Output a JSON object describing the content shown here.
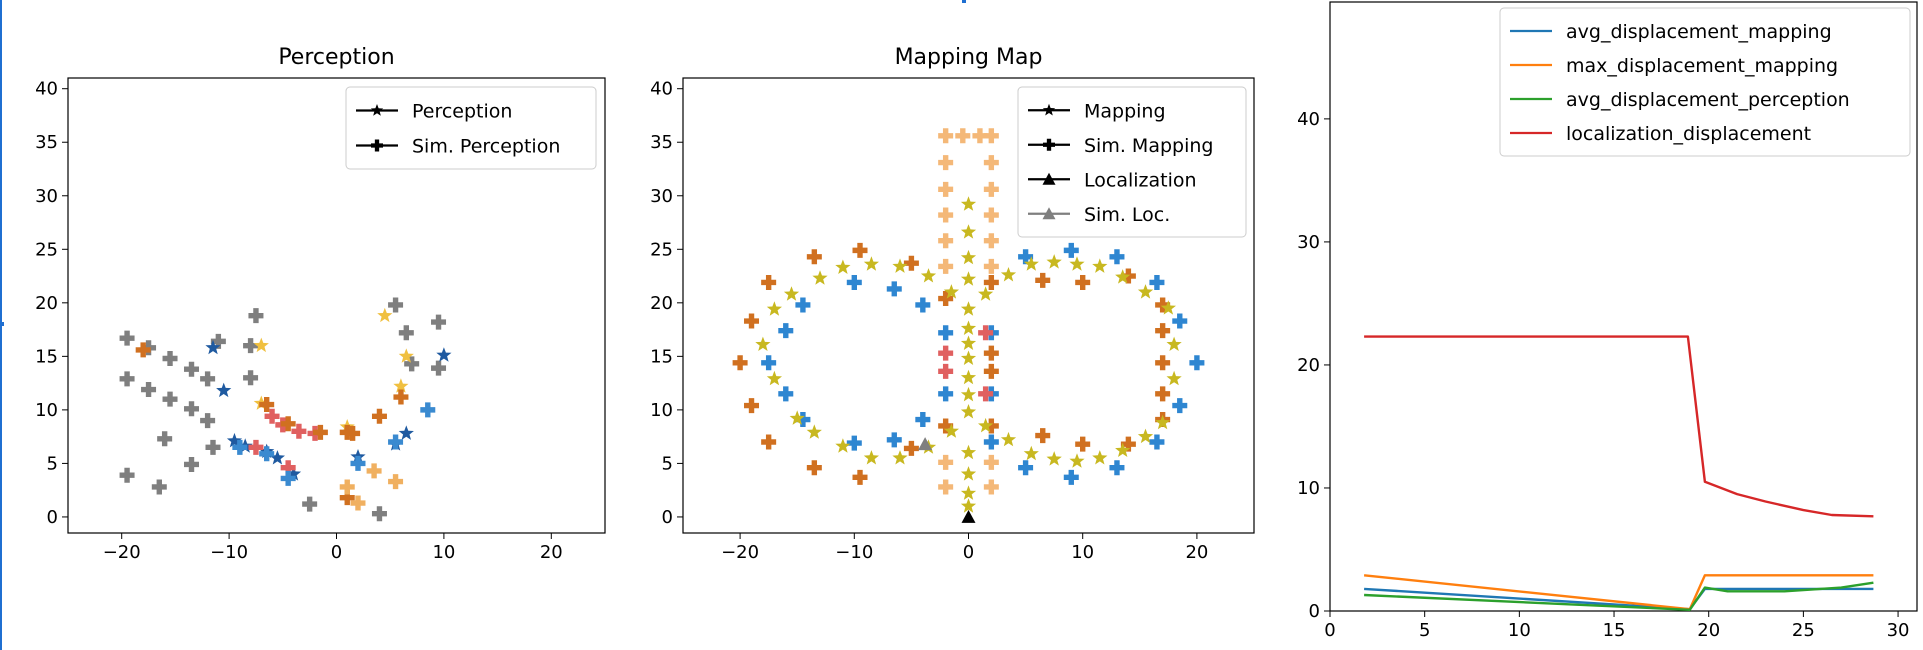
{
  "chart_data": [
    {
      "type": "scatter",
      "title": "Perception",
      "xlim": [
        -25,
        25
      ],
      "ylim": [
        -1.5,
        41
      ],
      "xticks": [
        -20,
        -10,
        0,
        10,
        20
      ],
      "yticks": [
        0,
        5,
        10,
        15,
        20,
        25,
        30,
        35,
        40
      ],
      "legend": {
        "placement": "top-right",
        "entries": [
          {
            "label": "Perception",
            "marker": "star",
            "color": "#000000"
          },
          {
            "label": "Sim. Perception",
            "marker": "plus",
            "color": "#000000"
          }
        ]
      },
      "series": [
        {
          "marker": "plus",
          "color": "#7f7f7f",
          "points": [
            [
              -19.5,
              16.7
            ],
            [
              -17.5,
              15.8
            ],
            [
              -15.5,
              14.8
            ],
            [
              -11,
              16.4
            ],
            [
              -8,
              16
            ],
            [
              -7.5,
              18.8
            ],
            [
              -19.5,
              12.9
            ],
            [
              -17.5,
              11.9
            ],
            [
              -15.5,
              11
            ],
            [
              -13.5,
              13.8
            ],
            [
              -12,
              12.9
            ],
            [
              -13.5,
              10.1
            ],
            [
              -12,
              9
            ],
            [
              -16,
              7.3
            ],
            [
              -13.5,
              4.9
            ],
            [
              -19.5,
              3.9
            ],
            [
              -16.5,
              2.8
            ],
            [
              -11.5,
              6.5
            ],
            [
              -8,
              13
            ],
            [
              -2.5,
              1.2
            ],
            [
              4,
              0.3
            ],
            [
              5.5,
              19.8
            ],
            [
              6.5,
              17.2
            ],
            [
              9.5,
              18.2
            ],
            [
              9.5,
              13.9
            ],
            [
              7,
              14.3
            ]
          ]
        },
        {
          "marker": "star",
          "color": "#1f5aa0",
          "points": [
            [
              -11.5,
              15.8
            ],
            [
              -10.5,
              11.8
            ],
            [
              -9.5,
              7.1
            ],
            [
              -8.5,
              6.6
            ],
            [
              -6.5,
              6.1
            ],
            [
              -5.5,
              5.5
            ],
            [
              -4,
              4
            ],
            [
              2,
              5.6
            ],
            [
              5.5,
              6.8
            ],
            [
              6.5,
              7.8
            ],
            [
              10,
              15.1
            ]
          ]
        },
        {
          "marker": "plus",
          "color": "#e06060",
          "points": [
            [
              -7.5,
              6.5
            ],
            [
              -6,
              9.4
            ],
            [
              -5,
              8.6
            ],
            [
              -4.5,
              4.6
            ],
            [
              -3.5,
              8
            ],
            [
              -2,
              7.8
            ]
          ]
        },
        {
          "marker": "star",
          "color": "#f0c040",
          "points": [
            [
              -7,
              16
            ],
            [
              -7,
              10.6
            ],
            [
              1,
              8.4
            ],
            [
              4.5,
              18.8
            ],
            [
              6,
              12.2
            ],
            [
              6.5,
              15
            ]
          ]
        },
        {
          "marker": "plus",
          "color": "#d07020",
          "points": [
            [
              -18,
              15.6
            ],
            [
              -6.5,
              10.5
            ],
            [
              -4.5,
              8.7
            ],
            [
              -1.5,
              7.9
            ],
            [
              1,
              7.9
            ],
            [
              1.5,
              7.8
            ],
            [
              4,
              9.4
            ],
            [
              6,
              11.2
            ],
            [
              1,
              1.8
            ]
          ]
        },
        {
          "marker": "plus",
          "color": "#f0b060",
          "points": [
            [
              1,
              2.8
            ],
            [
              2,
              1.3
            ],
            [
              3.5,
              4.3
            ],
            [
              5.5,
              3.3
            ]
          ]
        },
        {
          "marker": "plus",
          "color": "#3a8ad0",
          "points": [
            [
              -9,
              6.5
            ],
            [
              -6.5,
              5.9
            ],
            [
              -4.5,
              3.6
            ],
            [
              2,
              5
            ],
            [
              5.5,
              7
            ],
            [
              8.5,
              10
            ]
          ]
        }
      ]
    },
    {
      "type": "scatter",
      "title": "Mapping Map",
      "xlim": [
        -25,
        25
      ],
      "ylim": [
        -1.5,
        41
      ],
      "xticks": [
        -20,
        -10,
        0,
        10,
        20
      ],
      "yticks": [
        0,
        5,
        10,
        15,
        20,
        25,
        30,
        35,
        40
      ],
      "legend": {
        "placement": "top-right",
        "entries": [
          {
            "label": "Mapping",
            "marker": "star",
            "color": "#000000"
          },
          {
            "label": "Sim. Mapping",
            "marker": "plus",
            "color": "#000000"
          },
          {
            "label": "Localization",
            "marker": "triangle",
            "color": "#000000"
          },
          {
            "label": "Sim. Loc.",
            "marker": "triangle",
            "color": "#7f7f7f"
          }
        ]
      },
      "series": [
        {
          "marker": "plus",
          "color": "#2e86d1",
          "points": [
            [
              -14.5,
              19.8
            ],
            [
              -16,
              17.4
            ],
            [
              -17.5,
              14.4
            ],
            [
              -16,
              11.5
            ],
            [
              -14.5,
              9.1
            ],
            [
              -10,
              21.9
            ],
            [
              -6.5,
              21.3
            ],
            [
              -4,
              19.8
            ],
            [
              -2,
              17.2
            ],
            [
              -2,
              11.5
            ],
            [
              -4,
              9.1
            ],
            [
              -6.5,
              7.2
            ],
            [
              -10,
              6.9
            ],
            [
              2,
              17.2
            ],
            [
              2,
              11.5
            ],
            [
              2,
              7
            ],
            [
              5,
              24.3
            ],
            [
              9,
              24.9
            ],
            [
              13,
              24.3
            ],
            [
              16.5,
              21.9
            ],
            [
              18.5,
              18.3
            ],
            [
              20,
              14.4
            ],
            [
              18.5,
              10.4
            ],
            [
              16.5,
              7
            ],
            [
              13,
              4.6
            ],
            [
              9,
              3.7
            ],
            [
              5,
              4.6
            ]
          ]
        },
        {
          "marker": "plus",
          "color": "#d07020",
          "points": [
            [
              -20,
              14.4
            ],
            [
              -19,
              18.3
            ],
            [
              -19,
              10.4
            ],
            [
              -17.5,
              21.9
            ],
            [
              -17.5,
              7
            ],
            [
              -13.5,
              24.3
            ],
            [
              -13.5,
              4.6
            ],
            [
              -9.5,
              24.9
            ],
            [
              -9.5,
              3.7
            ],
            [
              -5,
              23.7
            ],
            [
              -5,
              6.4
            ],
            [
              -2,
              20.4
            ],
            [
              -2,
              8.5
            ],
            [
              2,
              21.9
            ],
            [
              2,
              8.5
            ],
            [
              2,
              15.3
            ],
            [
              2,
              13.6
            ],
            [
              6.5,
              22.1
            ],
            [
              6.5,
              7.6
            ],
            [
              10,
              21.9
            ],
            [
              10,
              6.8
            ],
            [
              14,
              22.5
            ],
            [
              14,
              6.8
            ],
            [
              17,
              19.8
            ],
            [
              17,
              11.5
            ],
            [
              17,
              9.1
            ],
            [
              17,
              17.4
            ],
            [
              17,
              14.4
            ]
          ]
        },
        {
          "marker": "plus",
          "color": "#f4b878",
          "points": [
            [
              -2,
              35.6
            ],
            [
              -0.5,
              35.6
            ],
            [
              1,
              35.6
            ],
            [
              2,
              35.6
            ],
            [
              -2,
              33.1
            ],
            [
              -2,
              30.6
            ],
            [
              -2,
              28.2
            ],
            [
              -2,
              25.8
            ],
            [
              -2,
              23.4
            ],
            [
              2,
              33.1
            ],
            [
              2,
              30.6
            ],
            [
              2,
              28.2
            ],
            [
              2,
              25.8
            ],
            [
              2,
              23.4
            ],
            [
              -2,
              5.1
            ],
            [
              -2,
              2.8
            ],
            [
              2,
              5.1
            ],
            [
              2,
              2.8
            ]
          ]
        },
        {
          "marker": "plus",
          "color": "#e06060",
          "points": [
            [
              -2,
              15.3
            ],
            [
              -2,
              13.6
            ],
            [
              1.5,
              17.2
            ],
            [
              1.5,
              11.5
            ]
          ]
        },
        {
          "marker": "star",
          "color": "#c8b820",
          "points": [
            [
              -18,
              16.1
            ],
            [
              -17,
              19.4
            ],
            [
              -17,
              12.9
            ],
            [
              -15.5,
              20.8
            ],
            [
              -15,
              9.2
            ],
            [
              -13,
              22.3
            ],
            [
              -13.5,
              7.9
            ],
            [
              -11,
              23.3
            ],
            [
              -11,
              6.6
            ],
            [
              -8.5,
              23.6
            ],
            [
              -8.5,
              5.5
            ],
            [
              -6,
              23.4
            ],
            [
              -6,
              5.5
            ],
            [
              -3.5,
              22.5
            ],
            [
              -3.5,
              6.5
            ],
            [
              -1.5,
              21
            ],
            [
              -1.5,
              8
            ],
            [
              0,
              19.4
            ],
            [
              0,
              17.6
            ],
            [
              0,
              16.2
            ],
            [
              0,
              14.8
            ],
            [
              0,
              13
            ],
            [
              0,
              11.4
            ],
            [
              0,
              9.8
            ],
            [
              1.5,
              20.8
            ],
            [
              1.5,
              8.5
            ],
            [
              3.5,
              22.6
            ],
            [
              3.5,
              7.2
            ],
            [
              5.5,
              23.6
            ],
            [
              5.5,
              5.9
            ],
            [
              7.5,
              23.8
            ],
            [
              7.5,
              5.4
            ],
            [
              9.5,
              23.6
            ],
            [
              9.5,
              5.2
            ],
            [
              11.5,
              23.4
            ],
            [
              11.5,
              5.5
            ],
            [
              13.5,
              22.4
            ],
            [
              13.5,
              6.2
            ],
            [
              15.5,
              21
            ],
            [
              15.5,
              7.5
            ],
            [
              17.5,
              19.5
            ],
            [
              17,
              8.8
            ],
            [
              18,
              16.1
            ],
            [
              18,
              12.9
            ],
            [
              0,
              29.2
            ],
            [
              0,
              26.6
            ],
            [
              0,
              24.2
            ],
            [
              0,
              22.2
            ],
            [
              0,
              6
            ],
            [
              0,
              4
            ],
            [
              0,
              2.2
            ],
            [
              0,
              1
            ]
          ]
        },
        {
          "marker": "triangle",
          "color": "#000000",
          "points": [
            [
              0,
              0
            ]
          ]
        },
        {
          "marker": "triangle",
          "color": "#7f7f7f",
          "points": [
            [
              -3.8,
              6.8
            ]
          ]
        }
      ]
    },
    {
      "type": "line",
      "xlim": [
        0,
        31
      ],
      "ylim": [
        0,
        49.5
      ],
      "xticks": [
        0,
        5,
        10,
        15,
        20,
        25,
        30
      ],
      "yticks": [
        0,
        10,
        20,
        30,
        40
      ],
      "legend": {
        "placement": "top-right",
        "entries": [
          {
            "label": "avg_displacement_mapping",
            "color": "#1f77b4"
          },
          {
            "label": "max_displacement_mapping",
            "color": "#ff7f0e"
          },
          {
            "label": "avg_displacement_perception",
            "color": "#2ca02c"
          },
          {
            "label": "localization_displacement",
            "color": "#d62728"
          }
        ]
      },
      "series": [
        {
          "name": "avg_displacement_mapping",
          "color": "#1f77b4",
          "x": [
            1.8,
            19,
            19.8,
            28.7
          ],
          "y": [
            1.8,
            0.15,
            1.8,
            1.8
          ]
        },
        {
          "name": "max_displacement_mapping",
          "color": "#ff7f0e",
          "x": [
            1.8,
            19,
            19.8,
            28.7
          ],
          "y": [
            2.9,
            0.15,
            2.9,
            2.9
          ]
        },
        {
          "name": "avg_displacement_perception",
          "color": "#2ca02c",
          "x": [
            1.8,
            19,
            19.8,
            21,
            24,
            27,
            28.7
          ],
          "y": [
            1.3,
            0.1,
            1.9,
            1.6,
            1.6,
            1.9,
            2.3
          ]
        },
        {
          "name": "localization_displacement",
          "color": "#d62728",
          "x": [
            1.8,
            18.9,
            19.8,
            21.5,
            23,
            25,
            26.5,
            28.7
          ],
          "y": [
            22.3,
            22.3,
            10.5,
            9.5,
            8.9,
            8.2,
            7.8,
            7.7
          ]
        }
      ]
    }
  ]
}
